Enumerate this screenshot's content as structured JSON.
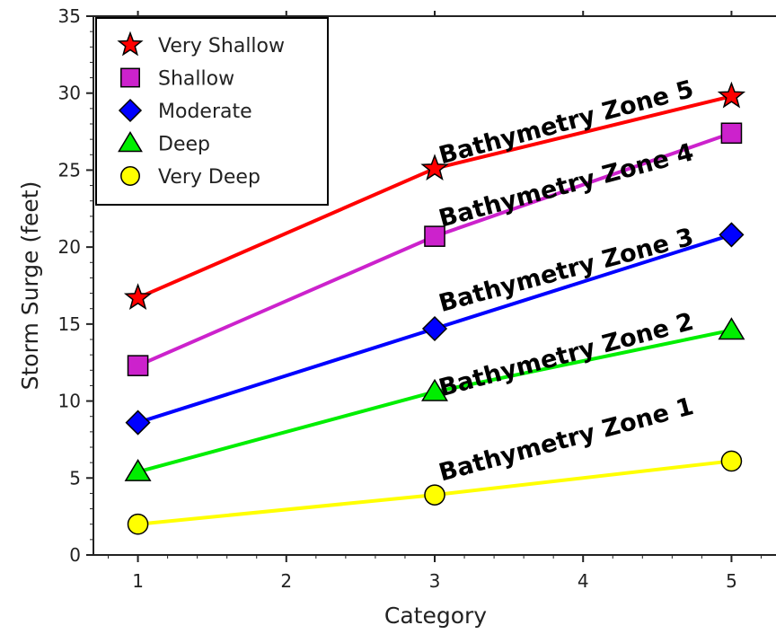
{
  "chart_data": {
    "type": "line",
    "xlabel": "Category",
    "ylabel": "Storm Surge (feet)",
    "xlim": [
      0.7,
      5.3
    ],
    "ylim": [
      0,
      35
    ],
    "xticks": [
      1,
      2,
      3,
      4,
      5
    ],
    "yticks": [
      0,
      5,
      10,
      15,
      20,
      25,
      30,
      35
    ],
    "grid": false,
    "legend_position": "top-left",
    "series": [
      {
        "name": "Very Shallow",
        "marker": "star",
        "color": "#ff0000",
        "x": [
          1,
          3,
          5
        ],
        "y": [
          16.7,
          25.1,
          29.8
        ]
      },
      {
        "name": "Shallow",
        "marker": "square",
        "color": "#cc22cc",
        "x": [
          1,
          3,
          5
        ],
        "y": [
          12.3,
          20.7,
          27.4
        ]
      },
      {
        "name": "Moderate",
        "marker": "diamond",
        "color": "#0000ff",
        "x": [
          1,
          3,
          5
        ],
        "y": [
          8.6,
          14.7,
          20.8
        ]
      },
      {
        "name": "Deep",
        "marker": "triangle",
        "color": "#00ee00",
        "x": [
          1,
          3,
          5
        ],
        "y": [
          5.4,
          10.6,
          14.6
        ]
      },
      {
        "name": "Very Deep",
        "marker": "circle",
        "color": "#ffff00",
        "x": [
          1,
          3,
          5
        ],
        "y": [
          2.0,
          3.9,
          6.1
        ]
      }
    ],
    "annotations": [
      {
        "text": "Bathymetry Zone 5",
        "x": 3.9,
        "y": 27.6
      },
      {
        "text": "Bathymetry Zone 4",
        "x": 3.9,
        "y": 23.5
      },
      {
        "text": "Bathymetry Zone 3",
        "x": 3.9,
        "y": 18.0
      },
      {
        "text": "Bathymetry Zone 2",
        "x": 3.9,
        "y": 12.5
      },
      {
        "text": "Bathymetry Zone 1",
        "x": 3.9,
        "y": 7.0
      }
    ]
  }
}
